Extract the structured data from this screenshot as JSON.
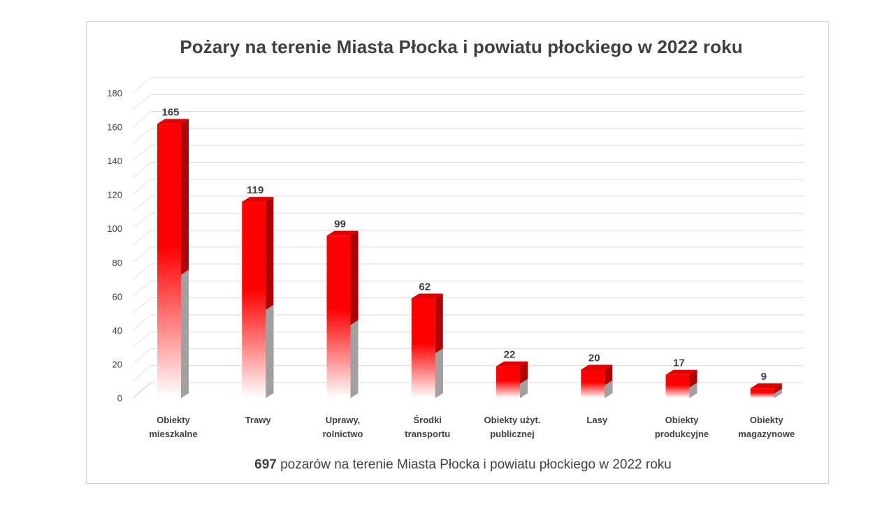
{
  "chart_data": {
    "type": "bar",
    "title": "Pożary na terenie Miasta Płocka i powiatu płockiego w 2022 roku",
    "categories": [
      [
        "Obiekty",
        "mieszkalne"
      ],
      [
        "Trawy"
      ],
      [
        "Uprawy,",
        "rolnictwo"
      ],
      [
        "Środki",
        "transportu"
      ],
      [
        "Obiekty użyt.",
        "publicznej"
      ],
      [
        "Lasy"
      ],
      [
        "Obiekty",
        "produkcyjne"
      ],
      [
        "Obiekty",
        "magazynowe"
      ]
    ],
    "values": [
      165,
      119,
      99,
      62,
      22,
      20,
      17,
      9
    ],
    "ylim": [
      0,
      180
    ],
    "yticks": [
      0,
      20,
      40,
      60,
      80,
      100,
      120,
      140,
      160,
      180
    ],
    "grid": true,
    "style": "3d-column",
    "colors": {
      "bar_top": "#ff0000",
      "bar_side": "#b00000",
      "bar_cap": "#e00000",
      "bar_fade": "#ffffff",
      "shadow": "#a0a0a0"
    }
  },
  "footer": {
    "total": "697",
    "text": " pozarów na terenie Miasta Płocka i powiatu płockiego w 2022 roku"
  }
}
